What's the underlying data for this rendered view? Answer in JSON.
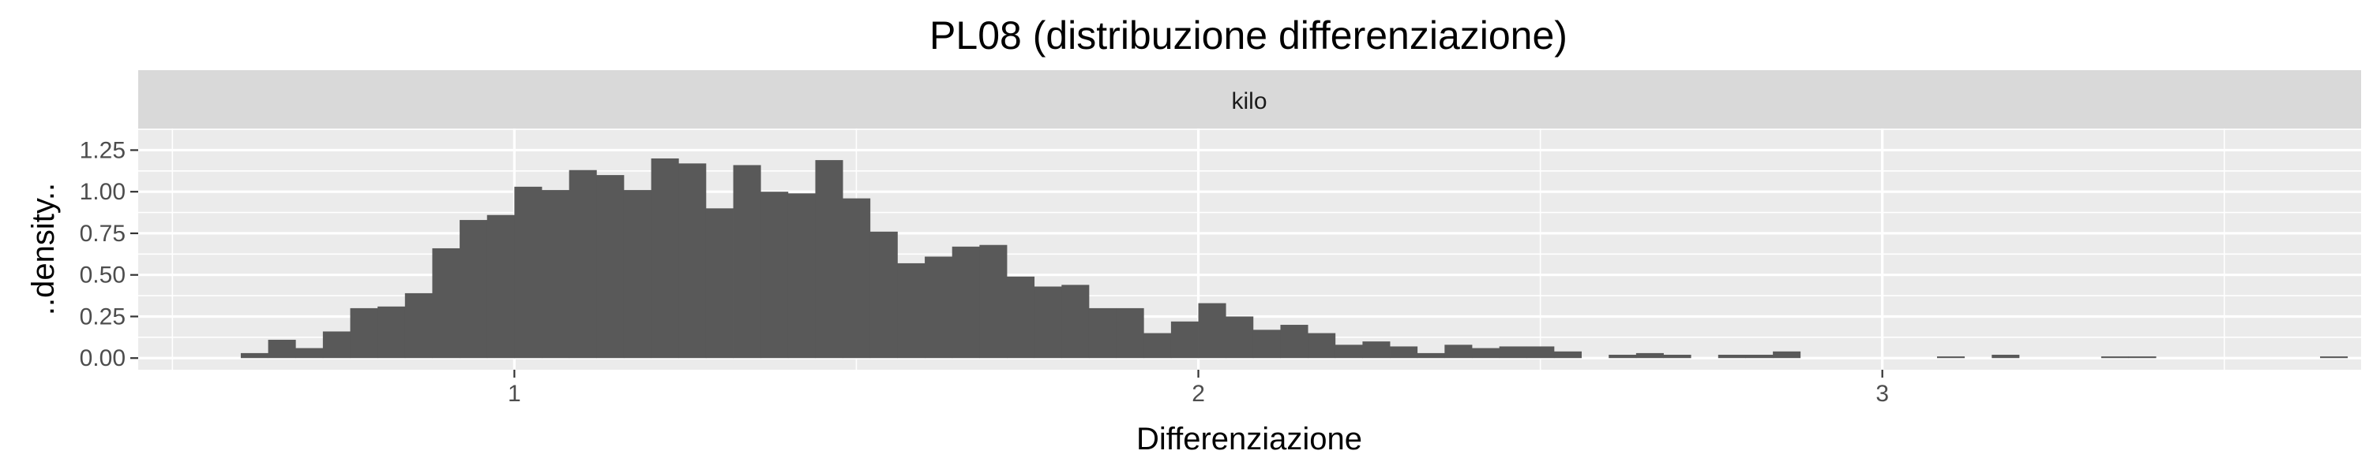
{
  "chart_data": {
    "type": "bar",
    "title": "PL08 (distribuzione differenziazione)",
    "facet_label": "kilo",
    "xlabel": "Differenziazione",
    "ylabel": "..density..",
    "xlim": [
      0.45,
      3.7
    ],
    "ylim": [
      -0.07,
      1.38
    ],
    "x_ticks": [
      1,
      2,
      3
    ],
    "x_tick_labels": [
      "1",
      "2",
      "3"
    ],
    "y_ticks": [
      0,
      0.25,
      0.5,
      0.75,
      1,
      1.25
    ],
    "y_tick_labels": [
      "0.00",
      "0.25",
      "0.50",
      "0.75",
      "1.00",
      "1.25"
    ],
    "bin_start": 0.6,
    "bin_width": 0.04,
    "values": [
      0.03,
      0.11,
      0.06,
      0.16,
      0.3,
      0.31,
      0.39,
      0.66,
      0.83,
      0.86,
      1.03,
      1.01,
      1.13,
      1.1,
      1.01,
      1.2,
      1.17,
      0.9,
      1.16,
      1.0,
      0.99,
      1.19,
      0.96,
      0.76,
      0.57,
      0.61,
      0.67,
      0.68,
      0.49,
      0.43,
      0.44,
      0.3,
      0.3,
      0.15,
      0.22,
      0.33,
      0.25,
      0.17,
      0.2,
      0.15,
      0.08,
      0.1,
      0.07,
      0.03,
      0.08,
      0.06,
      0.07,
      0.07,
      0.04,
      0.0,
      0.02,
      0.03,
      0.02,
      0.0,
      0.02,
      0.02,
      0.04,
      0.0,
      0.0,
      0.0,
      0.0,
      0.0,
      0.01,
      0.0,
      0.02,
      0.0,
      0.0,
      0.0,
      0.01,
      0.01,
      0.0,
      0.0,
      0.0,
      0.0,
      0.0,
      0.0,
      0.01,
      0.0,
      0.0,
      0.0,
      0.01
    ],
    "bar_color": "#595959",
    "panel_background": "#ebebeb",
    "strip_background": "#d9d9d9",
    "grid": true
  }
}
